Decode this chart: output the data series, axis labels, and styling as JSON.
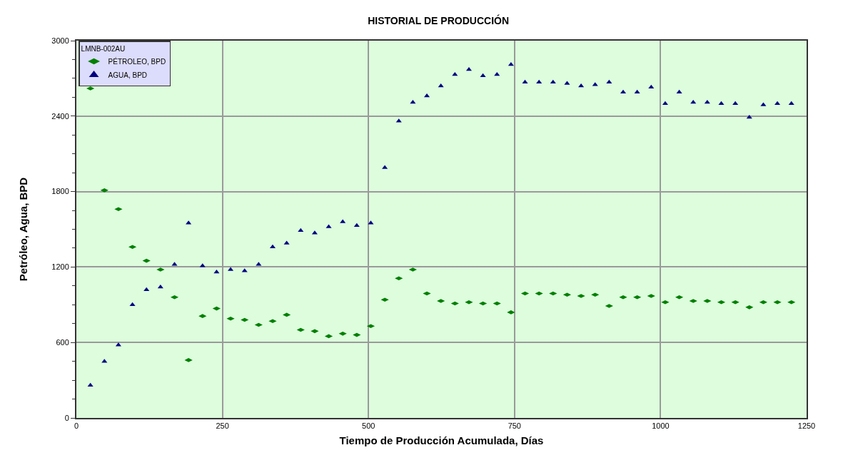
{
  "chart_data": {
    "type": "scatter",
    "title": "HISTORIAL DE PRODUCCIÓN",
    "xlabel": "Tiempo de Producción Acumulada, Días",
    "ylabel": "Petróleo, Agua, BPD",
    "legend_title": "LMNB-002AU",
    "x": [
      24,
      48,
      72,
      96,
      120,
      144,
      168,
      192,
      216,
      240,
      264,
      288,
      312,
      336,
      360,
      384,
      408,
      432,
      456,
      480,
      504,
      528,
      552,
      576,
      600,
      624,
      648,
      672,
      696,
      720,
      744,
      768,
      792,
      816,
      840,
      864,
      888,
      912,
      936,
      960,
      984,
      1008,
      1032,
      1056,
      1080,
      1104,
      1128,
      1152,
      1176,
      1200,
      1224
    ],
    "series": [
      {
        "name": "PÉTROLEO, BPD",
        "color": "#008000",
        "marker": "diamond",
        "values": [
          2620,
          1810,
          1660,
          1360,
          1250,
          1180,
          960,
          460,
          810,
          870,
          790,
          780,
          740,
          770,
          820,
          700,
          690,
          650,
          670,
          660,
          730,
          940,
          1110,
          1180,
          990,
          930,
          910,
          920,
          910,
          910,
          840,
          990,
          990,
          990,
          980,
          970,
          980,
          890,
          960,
          960,
          970,
          920,
          960,
          930,
          930,
          920,
          920,
          880,
          920,
          920,
          920
        ]
      },
      {
        "name": "AGUA, BPD",
        "color": "#000080",
        "marker": "triangle",
        "values": [
          260,
          450,
          580,
          900,
          1020,
          1040,
          1220,
          1550,
          1210,
          1160,
          1180,
          1170,
          1220,
          1360,
          1390,
          1490,
          1470,
          1520,
          1560,
          1530,
          1550,
          1990,
          2360,
          2510,
          2560,
          2640,
          2730,
          2770,
          2720,
          2730,
          2810,
          2670,
          2670,
          2670,
          2660,
          2640,
          2650,
          2670,
          2590,
          2590,
          2630,
          2500,
          2590,
          2510,
          2510,
          2500,
          2500,
          2390,
          2490,
          2500,
          2500
        ]
      }
    ],
    "xlim": [
      0,
      1250
    ],
    "xticks": [
      0,
      250,
      500,
      750,
      1000,
      1250
    ],
    "ylim": [
      0,
      3000
    ],
    "yticks": [
      0,
      {
        "value": 150,
        "label": null
      },
      {
        "value": 300,
        "label": null
      },
      {
        "value": 450,
        "label": null
      },
      600,
      {
        "value": 750,
        "label": null
      },
      {
        "value": 900,
        "label": null
      },
      {
        "value": 1050,
        "label": null
      },
      1200,
      {
        "value": 1350,
        "label": null
      },
      {
        "value": 1500,
        "label": null
      },
      {
        "value": 1650,
        "label": null
      },
      1800,
      {
        "value": 1950,
        "label": null
      },
      {
        "value": 2100,
        "label": null
      },
      {
        "value": 2250,
        "label": null
      },
      2400,
      {
        "value": 2550,
        "label": null
      },
      {
        "value": 2700,
        "label": null
      },
      {
        "value": 2850,
        "label": null
      },
      3000
    ],
    "grid": true,
    "legend": "top left"
  }
}
